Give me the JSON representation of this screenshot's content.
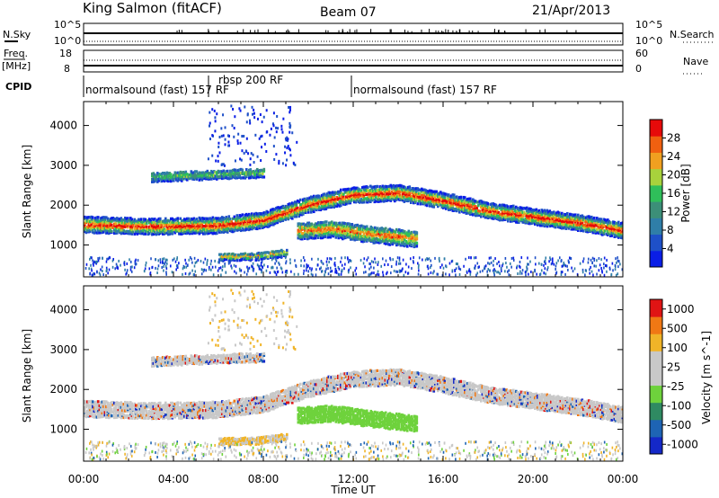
{
  "header": {
    "station": "King Salmon (fitACF)",
    "beam": "Beam 07",
    "date": "21/Apr/2013"
  },
  "param_panels": {
    "nsky_label": "N.Sky",
    "nsearch_label": "N.Search",
    "noise_ticks_left": [
      "10^5",
      "10^0"
    ],
    "noise_ticks_right": [
      "10^5",
      "10^0"
    ],
    "freq_label": "Freq.",
    "freq_unit": "[MHz]",
    "freq_ticks": [
      "18",
      "8"
    ],
    "nave_label": "Nave",
    "nave_ticks": [
      "60",
      "0"
    ],
    "cpid_label": "CPID",
    "cpid_segments": [
      "normalsound (fast) 157 RF",
      "rbsp 200 RF",
      "normalsound (fast) 157 RF"
    ]
  },
  "colors": {
    "power_scale": [
      "#0a1ee6",
      "#1e50c8",
      "#2f7ea8",
      "#3c8f78",
      "#2fbf5a",
      "#a8d23c",
      "#f0a020",
      "#f06010",
      "#e60a0a"
    ],
    "velocity_scale": [
      "#1428c8",
      "#1e64b4",
      "#2f8a62",
      "#6ed23c",
      "#c8c8c8",
      "#c8c8c8",
      "#f0b428",
      "#f07814",
      "#e01414"
    ]
  },
  "chart_data": [
    {
      "type": "heatmap",
      "title": "Power",
      "xlabel": "",
      "ylabel": "Slant Range [km]",
      "xlim": [
        "00:00",
        "24:00"
      ],
      "ylim": [
        200,
        4600
      ],
      "y_ticks": [
        1000,
        2000,
        3000,
        4000
      ],
      "colorbar": {
        "label": "Power [dB]",
        "ticks": [
          4,
          8,
          12,
          16,
          20,
          24,
          28
        ],
        "range": [
          0,
          32
        ]
      },
      "echo_bands": [
        {
          "x": [
            0,
            3,
            6,
            8,
            10,
            12,
            14,
            16,
            18,
            20,
            22,
            24
          ],
          "y": [
            1500,
            1450,
            1480,
            1620,
            2000,
            2250,
            2300,
            2100,
            1850,
            1700,
            1550,
            1350
          ]
        },
        {
          "x": [
            3,
            5,
            7,
            8
          ],
          "y": [
            2700,
            2750,
            2800,
            2800
          ]
        },
        {
          "x": [
            9.5,
            11,
            13,
            14.8
          ],
          "y": [
            1350,
            1400,
            1250,
            1150
          ]
        },
        {
          "x": [
            6,
            7.5,
            9
          ],
          "y": [
            700,
            700,
            800
          ]
        }
      ]
    },
    {
      "type": "heatmap",
      "title": "Velocity",
      "xlabel": "Time UT",
      "ylabel": "Slant Range [km]",
      "xlim": [
        "00:00",
        "24:00"
      ],
      "ylim": [
        200,
        4600
      ],
      "y_ticks": [
        1000,
        2000,
        3000,
        4000
      ],
      "x_ticks": [
        "00:00",
        "04:00",
        "08:00",
        "12:00",
        "16:00",
        "20:00",
        "00:00"
      ],
      "colorbar": {
        "label": "Velocity [m s^-1]",
        "ticks": [
          1000,
          500,
          100,
          25,
          -25,
          -100,
          -500,
          -1000
        ]
      }
    }
  ]
}
